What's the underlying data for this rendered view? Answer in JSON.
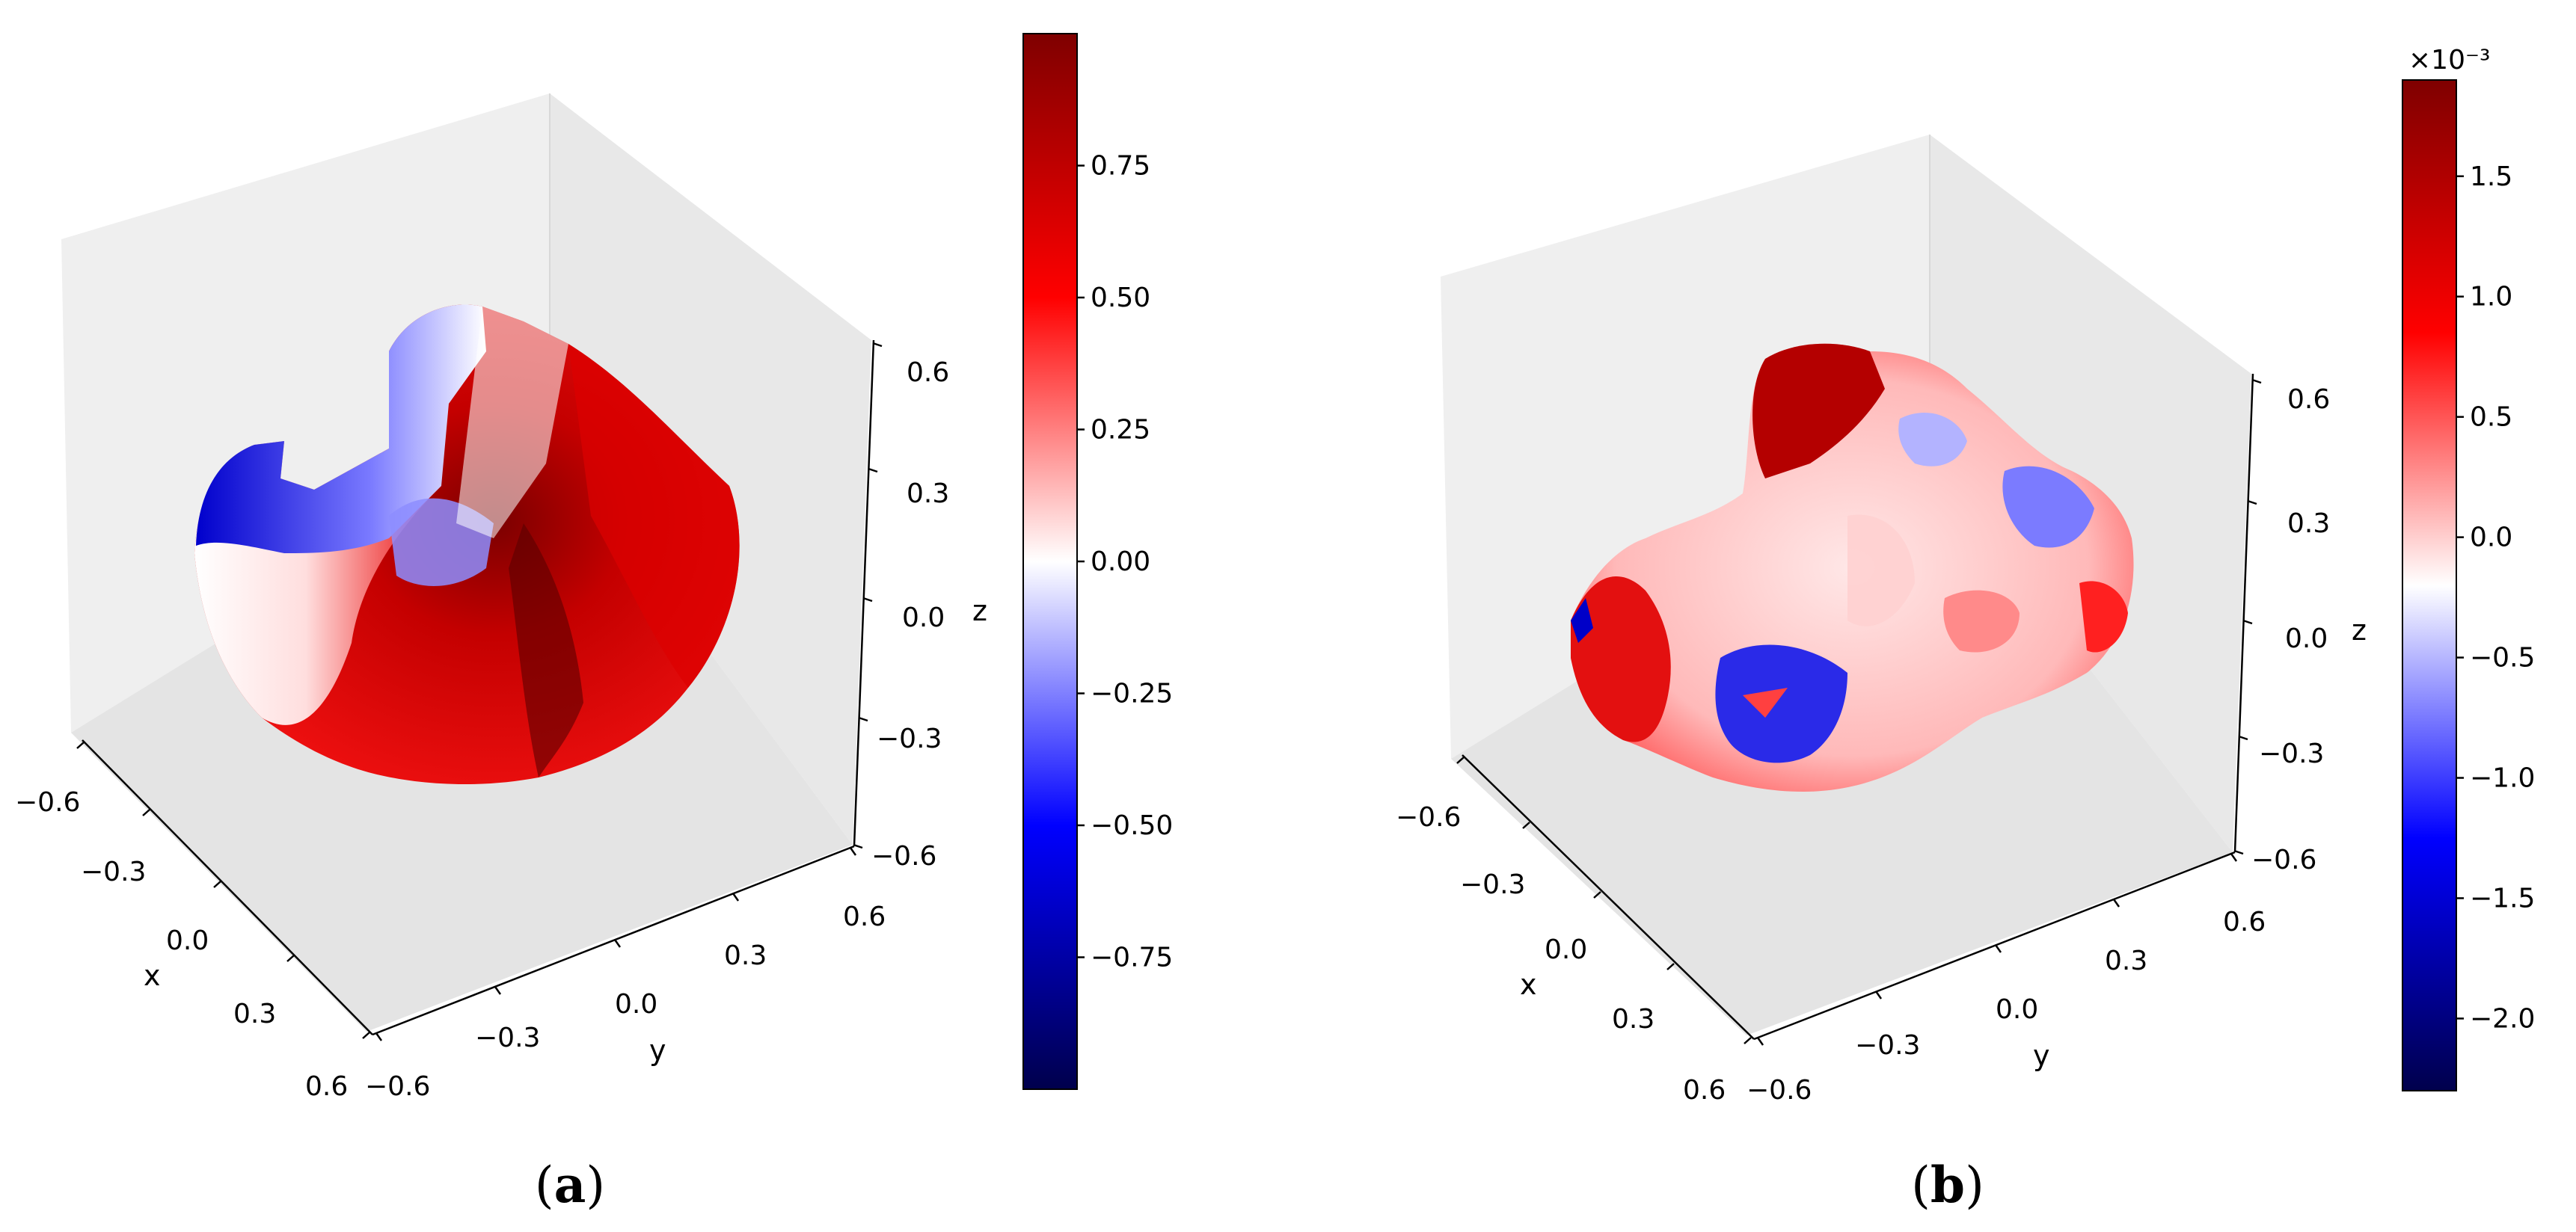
{
  "chart_data": [
    {
      "panel": "(a)",
      "type": "scatter3d",
      "xlabel": "x",
      "ylabel": "y",
      "zlabel": "z",
      "xticks": [
        "−0.6",
        "−0.3",
        "0.0",
        "0.3",
        "0.6"
      ],
      "yticks": [
        "−0.6",
        "−0.3",
        "0.0",
        "0.3",
        "0.6"
      ],
      "zticks": [
        "−0.6",
        "−0.3",
        "0.0",
        "0.3",
        "0.6"
      ],
      "xlim": [
        -0.6,
        0.6
      ],
      "ylim": [
        -0.6,
        0.6
      ],
      "zlim": [
        -0.6,
        0.6
      ],
      "colormap": "seismic",
      "colorbar": {
        "min": -1.0,
        "max": 1.0,
        "ticks": [
          "0.75",
          "0.50",
          "0.25",
          "0.00",
          "−0.25",
          "−0.50",
          "−0.75"
        ],
        "tick_values": [
          0.75,
          0.5,
          0.25,
          0.0,
          -0.25,
          -0.5,
          -0.75
        ],
        "exponent": ""
      }
    },
    {
      "panel": "(b)",
      "type": "scatter3d",
      "xlabel": "x",
      "ylabel": "y",
      "zlabel": "z",
      "xticks": [
        "−0.6",
        "−0.3",
        "0.0",
        "0.3",
        "0.6"
      ],
      "yticks": [
        "−0.6",
        "−0.3",
        "0.0",
        "0.3",
        "0.6"
      ],
      "zticks": [
        "−0.6",
        "−0.3",
        "0.0",
        "0.3",
        "0.6"
      ],
      "xlim": [
        -0.6,
        0.6
      ],
      "ylim": [
        -0.6,
        0.6
      ],
      "zlim": [
        -0.6,
        0.6
      ],
      "colormap": "seismic",
      "colorbar": {
        "min": -2.3,
        "max": 1.9,
        "ticks": [
          "1.5",
          "1.0",
          "0.5",
          "0.0",
          "−0.5",
          "−1.0",
          "−1.5",
          "−2.0"
        ],
        "tick_values": [
          1.5,
          1.0,
          0.5,
          0.0,
          -0.5,
          -1.0,
          -1.5,
          -2.0
        ],
        "exponent": "×10⁻³"
      }
    }
  ],
  "labels": {
    "a_open": "(",
    "a_letter": "a",
    "a_close": ")",
    "b_open": "(",
    "b_letter": "b",
    "b_close": ")"
  }
}
